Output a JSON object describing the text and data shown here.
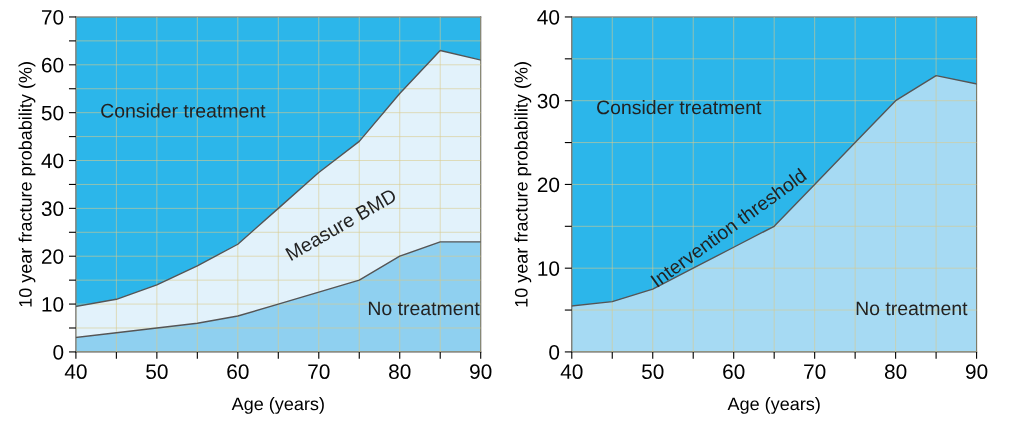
{
  "chart_data": [
    {
      "type": "area",
      "x": [
        40,
        45,
        50,
        55,
        60,
        65,
        70,
        75,
        80,
        85,
        90
      ],
      "xlabel": "Age (years)",
      "ylabel": "10 year fracture probability (%)",
      "xlim": [
        40,
        90
      ],
      "ylim": [
        0,
        70
      ],
      "xticks": [
        40,
        {
          "value": 45,
          "label": null
        },
        50,
        {
          "value": 55,
          "label": null
        },
        60,
        {
          "value": 65,
          "label": null
        },
        70,
        {
          "value": 75,
          "label": null
        },
        80,
        {
          "value": 85,
          "label": null
        },
        90
      ],
      "yticks": [
        0,
        {
          "value": 5,
          "label": null
        },
        10,
        {
          "value": 15,
          "label": null
        },
        20,
        {
          "value": 25,
          "label": null
        },
        30,
        {
          "value": 35,
          "label": null
        },
        40,
        {
          "value": 45,
          "label": null
        },
        50,
        {
          "value": 55,
          "label": null
        },
        60,
        {
          "value": 65,
          "label": null
        },
        70
      ],
      "grid": true,
      "bands": [
        {
          "axis": "y",
          "from": 0,
          "to": 70,
          "color": "#2cb6ea"
        }
      ],
      "series": [
        {
          "color": "#e2f2fb",
          "values": [
            9.5,
            11,
            14,
            18,
            22.5,
            30,
            37.5,
            44,
            54,
            63,
            61
          ]
        },
        {
          "color": "#8fd0f0",
          "values": [
            3,
            4,
            5,
            6,
            7.5,
            10,
            12.5,
            15,
            20,
            23,
            23
          ]
        }
      ],
      "annotations": [
        "Consider treatment",
        "Measure BMD",
        "No treatment"
      ]
    },
    {
      "type": "area",
      "x": [
        40,
        45,
        50,
        55,
        60,
        65,
        70,
        75,
        80,
        85,
        90
      ],
      "xlabel": "Age (years)",
      "ylabel": "10 year fracture probability (%)",
      "xlim": [
        40,
        90
      ],
      "ylim": [
        0,
        40
      ],
      "xticks": [
        40,
        {
          "value": 45,
          "label": null
        },
        50,
        {
          "value": 55,
          "label": null
        },
        60,
        {
          "value": 65,
          "label": null
        },
        70,
        {
          "value": 75,
          "label": null
        },
        80,
        {
          "value": 85,
          "label": null
        },
        90
      ],
      "yticks": [
        0,
        {
          "value": 5,
          "label": null
        },
        10,
        {
          "value": 15,
          "label": null
        },
        20,
        {
          "value": 25,
          "label": null
        },
        30,
        {
          "value": 35,
          "label": null
        },
        40
      ],
      "grid": true,
      "bands": [
        {
          "axis": "y",
          "from": 0,
          "to": 40,
          "color": "#2cb6ea"
        }
      ],
      "series": [
        {
          "color": "#a6daf3",
          "values": [
            5.5,
            6,
            7.5,
            10,
            12.5,
            15,
            20,
            25,
            30,
            33,
            32
          ]
        }
      ],
      "annotations": [
        "Consider treatment",
        "Intervention threshold",
        "No treatment"
      ]
    }
  ]
}
